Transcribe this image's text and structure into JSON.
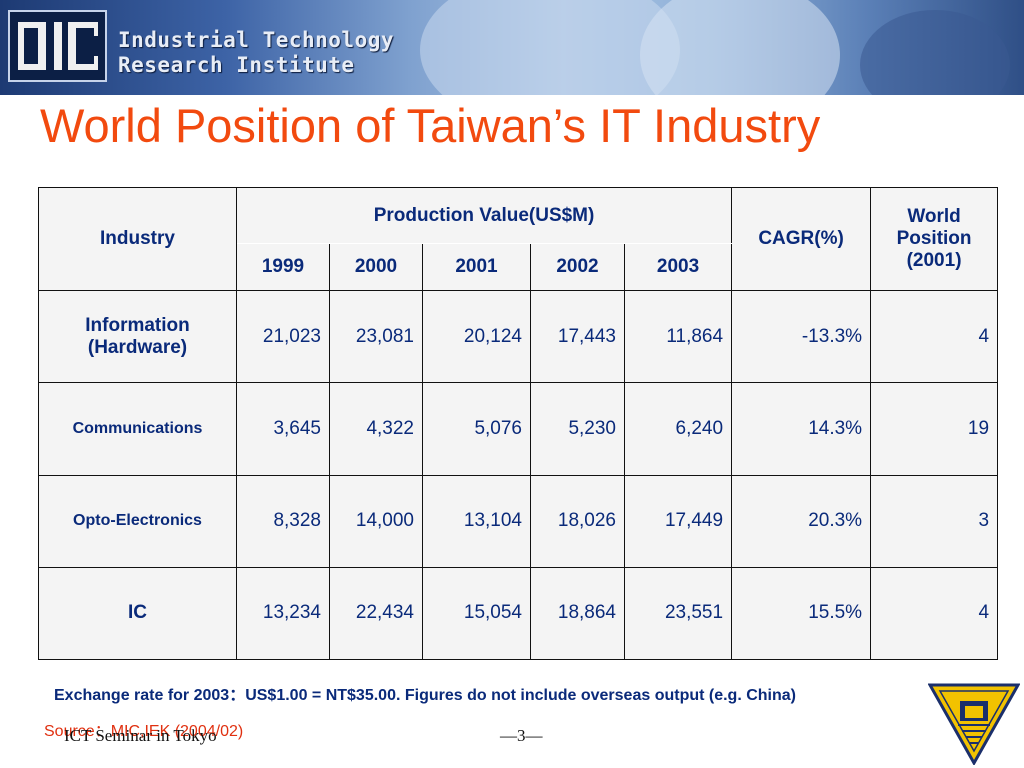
{
  "banner": {
    "logo_text": "ITRI",
    "line1": "Industrial Technology",
    "line2": "Research Institute"
  },
  "slide": {
    "title": "World Position of Taiwan’s IT Industry"
  },
  "table": {
    "headers": {
      "industry": "Industry",
      "production": "Production Value(US$M)",
      "years": [
        "1999",
        "2000",
        "2001",
        "2002",
        "2003"
      ],
      "cagr": "CAGR(%)",
      "world_position": [
        "World",
        "Position",
        "(2001)"
      ]
    },
    "rows": [
      {
        "industry": [
          "Information",
          "(Hardware)"
        ],
        "values": [
          "21,023",
          "23,081",
          "20,124",
          "17,443",
          "11,864"
        ],
        "cagr": "-13.3%",
        "rank": "4"
      },
      {
        "industry": [
          "Communications"
        ],
        "values": [
          "3,645",
          "4,322",
          "5,076",
          "5,230",
          "6,240"
        ],
        "cagr": "14.3%",
        "rank": "19"
      },
      {
        "industry": [
          "Opto-Electronics"
        ],
        "values": [
          "8,328",
          "14,000",
          "13,104",
          "18,026",
          "17,449"
        ],
        "cagr": "20.3%",
        "rank": "3"
      },
      {
        "industry": [
          "IC"
        ],
        "values": [
          "13,234",
          "22,434",
          "15,054",
          "18,864",
          "23,551"
        ],
        "cagr": "15.5%",
        "rank": "4"
      }
    ]
  },
  "note": "Exchange rate for 2003：US$1.00 = NT$35.00. Figures do not include  overseas output (e.g. China)",
  "source": "Source：MIC,IEK (2004/02)",
  "footer": {
    "event": "ICT Seminar in Tokyo",
    "page": "—3—"
  },
  "colors": {
    "title": "#f24a0f",
    "table_text": "#0a2a7a",
    "source": "#e03010",
    "seal": "#f2c200"
  }
}
